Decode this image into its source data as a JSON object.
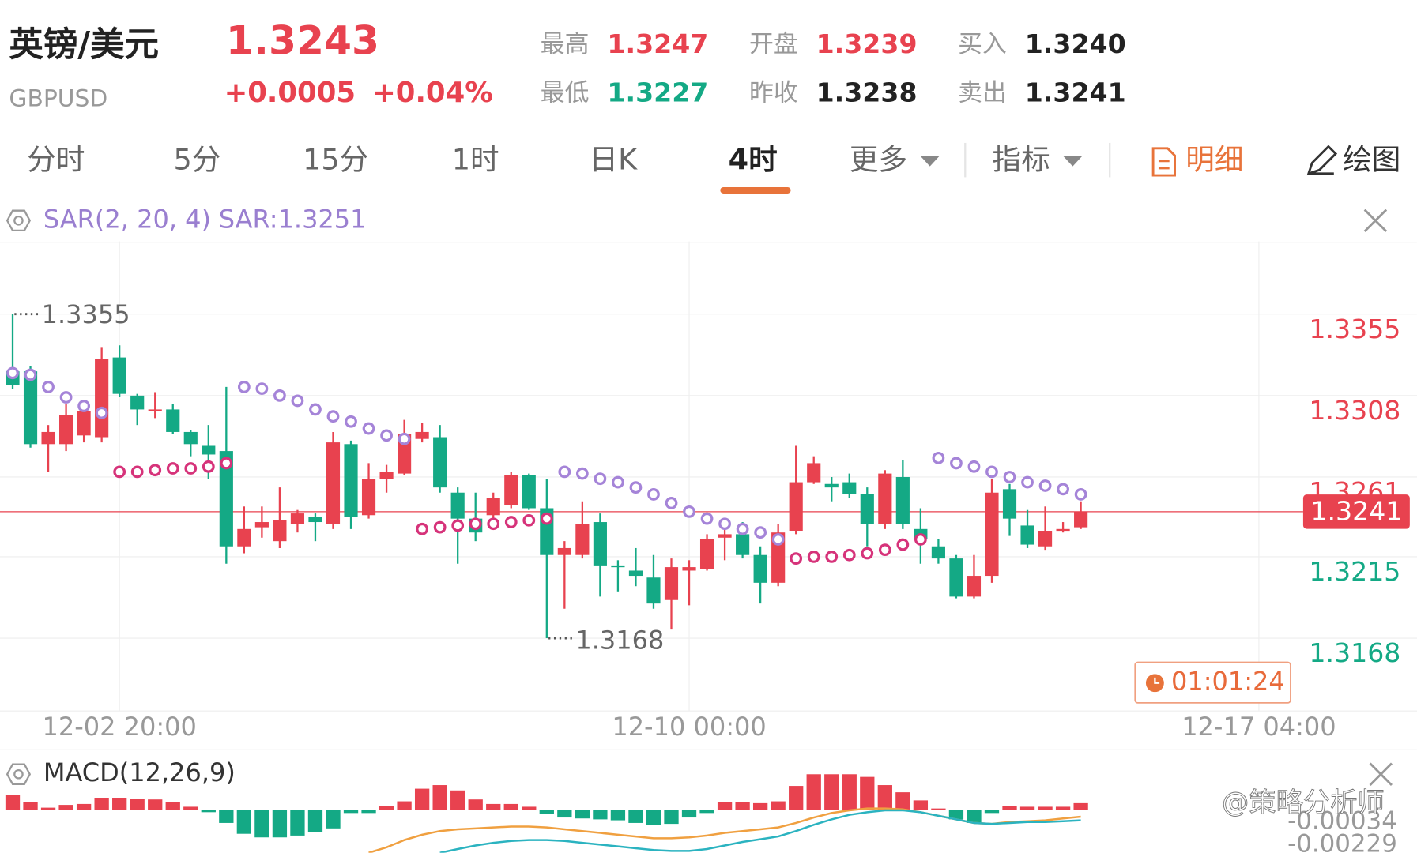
{
  "header": {
    "name": "英镑/美元",
    "code": "GBPUSD",
    "price": "1.3243",
    "change": "+0.0005",
    "change_pct": "+0.04%"
  },
  "stats": [
    {
      "label": "最高",
      "value": "1.3247",
      "color": "#e8424f"
    },
    {
      "label": "最低",
      "value": "1.3227",
      "color": "#14a985"
    },
    {
      "label": "开盘",
      "value": "1.3239",
      "color": "#e8424f"
    },
    {
      "label": "昨收",
      "value": "1.3238",
      "color": "#222222"
    },
    {
      "label": "买入",
      "value": "1.3240",
      "color": "#222222"
    },
    {
      "label": "卖出",
      "value": "1.3241",
      "color": "#222222"
    }
  ],
  "tabs": [
    "分时",
    "5分",
    "15分",
    "1时",
    "日K",
    "4时",
    "更多",
    "指标",
    "明细",
    "绘图"
  ],
  "active_tab": 5,
  "watermark": "@策略分析师",
  "chart_data": {
    "type": "candlestick",
    "indicator": "SAR(2, 20, 4)",
    "indicator_value": "SAR:1.3251",
    "up_color": "#e8424f",
    "down_color": "#14a985",
    "open": [
      1.3322,
      1.3322,
      1.328,
      1.328,
      1.3285,
      1.3284,
      1.333,
      1.3308,
      1.3299,
      1.33,
      1.3287,
      1.3279,
      1.3276,
      1.3221,
      1.3232,
      1.3224,
      1.3234,
      1.3238,
      1.3234,
      1.328,
      1.3239,
      1.326,
      1.3263,
      1.3283,
      1.3284,
      1.3252,
      1.3237,
      1.3239,
      1.3245,
      1.3262,
      1.3243,
      1.3216,
      1.3216,
      1.3235,
      1.321,
      1.3207,
      1.3203,
      1.319,
      1.3207,
      1.3208,
      1.3226,
      1.3228,
      1.3216,
      1.32,
      1.323,
      1.3258,
      1.3257,
      1.3258,
      1.3251,
      1.3234,
      1.3261,
      1.3231,
      1.3221,
      1.3214,
      1.3192,
      1.3204,
      1.3254,
      1.3233,
      1.3221,
      1.323,
      1.3232
    ],
    "high": [
      1.3355,
      1.3325,
      1.3291,
      1.3303,
      1.3304,
      1.3336,
      1.3337,
      1.3309,
      1.331,
      1.3303,
      1.3288,
      1.3291,
      1.3313,
      1.3244,
      1.3244,
      1.3255,
      1.3242,
      1.324,
      1.3287,
      1.3282,
      1.3269,
      1.3268,
      1.3294,
      1.3292,
      1.3291,
      1.3255,
      1.3252,
      1.3252,
      1.3264,
      1.3263,
      1.326,
      1.3224,
      1.3247,
      1.324,
      1.3213,
      1.322,
      1.3216,
      1.3214,
      1.3213,
      1.3228,
      1.3237,
      1.3235,
      1.3221,
      1.3234,
      1.3279,
      1.3273,
      1.3261,
      1.3263,
      1.3255,
      1.3265,
      1.3271,
      1.3243,
      1.3225,
      1.3216,
      1.3216,
      1.326,
      1.3257,
      1.3242,
      1.3244,
      1.3235,
      1.3247
    ],
    "low": [
      1.3312,
      1.3278,
      1.3264,
      1.3276,
      1.3281,
      1.3281,
      1.3307,
      1.3291,
      1.3295,
      1.3286,
      1.3273,
      1.326,
      1.3211,
      1.3217,
      1.3226,
      1.322,
      1.3229,
      1.3224,
      1.3231,
      1.3231,
      1.3237,
      1.3252,
      1.3262,
      1.3281,
      1.3252,
      1.3211,
      1.3224,
      1.3237,
      1.3243,
      1.3242,
      1.3168,
      1.3185,
      1.3214,
      1.3192,
      1.3195,
      1.3198,
      1.3185,
      1.3173,
      1.3187,
      1.3207,
      1.3213,
      1.3214,
      1.3188,
      1.3198,
      1.3228,
      1.3257,
      1.3247,
      1.3249,
      1.3221,
      1.3231,
      1.3231,
      1.3211,
      1.3211,
      1.3191,
      1.3191,
      1.32,
      1.3227,
      1.322,
      1.3219,
      1.3229,
      1.3231
    ],
    "close": [
      1.3314,
      1.328,
      1.3287,
      1.3297,
      1.3299,
      1.3329,
      1.3309,
      1.33,
      1.33,
      1.3287,
      1.328,
      1.3274,
      1.3221,
      1.3231,
      1.3235,
      1.3236,
      1.324,
      1.3235,
      1.3281,
      1.3238,
      1.326,
      1.3264,
      1.3286,
      1.3287,
      1.3255,
      1.3237,
      1.3229,
      1.3249,
      1.3262,
      1.3243,
      1.3216,
      1.322,
      1.3234,
      1.321,
      1.3209,
      1.3204,
      1.3188,
      1.3209,
      1.3209,
      1.3225,
      1.3228,
      1.3216,
      1.32,
      1.3229,
      1.3258,
      1.3269,
      1.3255,
      1.3251,
      1.3234,
      1.3263,
      1.3234,
      1.3225,
      1.3214,
      1.3192,
      1.3204,
      1.3252,
      1.3237,
      1.3222,
      1.323,
      1.3231,
      1.3241
    ],
    "sar": [
      {
        "color": "#a584d8",
        "values": [
          1.3321,
          1.332,
          1.3313,
          1.3307,
          1.3302,
          1.3298,
          null,
          null,
          null,
          null,
          null,
          null,
          null,
          1.3313,
          1.3312,
          1.3308,
          1.3305,
          1.33,
          1.3296,
          1.3293,
          1.3289,
          1.3285,
          1.3283,
          null,
          null,
          null,
          null,
          null,
          null,
          null,
          null,
          1.3264,
          1.3263,
          1.326,
          1.3258,
          1.3255,
          1.3251,
          1.3246,
          1.3241,
          1.3237,
          1.3234,
          1.3231,
          1.3229,
          1.3225,
          null,
          null,
          null,
          null,
          null,
          null,
          null,
          null,
          1.3272,
          1.3269,
          1.3267,
          1.3264,
          1.3261,
          1.3258,
          1.3256,
          1.3254,
          1.3251
        ]
      },
      {
        "color": "#d6337a",
        "values": [
          null,
          null,
          null,
          null,
          null,
          null,
          1.3264,
          1.3264,
          1.3265,
          1.3266,
          1.3266,
          1.3267,
          1.3269,
          null,
          null,
          null,
          null,
          null,
          null,
          null,
          null,
          null,
          null,
          1.3231,
          1.3232,
          1.3233,
          1.3234,
          1.3234,
          1.3235,
          1.3236,
          1.3237,
          null,
          null,
          null,
          null,
          null,
          null,
          null,
          null,
          null,
          null,
          null,
          null,
          null,
          1.3214,
          1.3215,
          1.3215,
          1.3216,
          1.3217,
          1.3219,
          1.3222,
          1.3225,
          null,
          null,
          null,
          null,
          null,
          null,
          null,
          null,
          null
        ]
      }
    ],
    "ylim": [
      1.3126,
      1.3397
    ],
    "yticks": [
      1.3355,
      1.3308,
      1.3261,
      1.3215,
      1.3168
    ],
    "current": 1.3241,
    "timer": "01:01:24",
    "x_labels": [
      {
        "index": 6,
        "label": "12-02 20:00"
      },
      {
        "index": 38,
        "label": "12-10 00:00"
      },
      {
        "index": 70,
        "label": "12-17 04:00"
      }
    ],
    "macd": {
      "title": "MACD(12,26,9)",
      "histogram": [
        0.00133,
        0.0007,
        0.00023,
        0.00047,
        0.00055,
        0.00109,
        0.00109,
        0.00101,
        0.00094,
        0.0007,
        0.00031,
        -0.00016,
        -0.00109,
        -0.00203,
        -0.00234,
        -0.00234,
        -0.00218,
        -0.00187,
        -0.00156,
        -0.00023,
        -0.00023,
        0.00039,
        0.00078,
        0.00187,
        0.00218,
        0.00172,
        0.00094,
        0.00055,
        0.00055,
        0.00031,
        -0.00031,
        -0.00062,
        -0.0007,
        -0.00078,
        -0.00086,
        -0.00109,
        -0.00125,
        -0.00117,
        -0.00062,
        -0.00023,
        0.0007,
        0.0007,
        0.00062,
        0.00078,
        0.00211,
        0.00312,
        0.00312,
        0.00312,
        0.00289,
        0.00218,
        0.00156,
        0.00086,
        0.00016,
        -0.00078,
        -0.00109,
        -0.00023,
        0.00039,
        0.00031,
        0.00031,
        0.00031,
        0.00062
      ],
      "series": [
        {
          "color": "#f0a040",
          "values": [
            null,
            null,
            null,
            null,
            null,
            null,
            null,
            null,
            null,
            null,
            null,
            null,
            null,
            null,
            null,
            null,
            null,
            null,
            null,
            null,
            -0.00367,
            -0.0032,
            -0.00257,
            -0.00211,
            -0.00179,
            -0.00164,
            -0.00156,
            -0.00148,
            -0.0014,
            -0.0014,
            -0.00148,
            -0.00164,
            -0.00179,
            -0.00195,
            -0.00211,
            -0.00226,
            -0.00242,
            -0.00242,
            -0.00234,
            -0.00218,
            -0.00195,
            -0.00179,
            -0.00164,
            -0.00148,
            -0.00109,
            -0.00062,
            -0.00023,
            0,
            0.00016,
            0.00016,
            8e-05,
            -0.00016,
            -0.00047,
            -0.00078,
            -0.00109,
            -0.00117,
            -0.00101,
            -0.00094,
            -0.00086,
            -0.0007,
            -0.00055
          ]
        },
        {
          "color": "#2bb3c0",
          "values": [
            null,
            null,
            null,
            null,
            null,
            null,
            null,
            null,
            null,
            null,
            null,
            null,
            null,
            null,
            null,
            null,
            null,
            null,
            null,
            null,
            null,
            null,
            null,
            null,
            -0.00367,
            -0.00335,
            -0.00304,
            -0.00281,
            -0.00265,
            -0.00257,
            -0.00257,
            -0.00265,
            -0.00281,
            -0.00296,
            -0.00312,
            -0.00328,
            -0.00343,
            -0.00351,
            -0.00351,
            -0.00335,
            -0.00304,
            -0.00273,
            -0.0025,
            -0.00226,
            -0.00179,
            -0.00125,
            -0.00078,
            -0.00039,
            -0.00016,
            0,
            0,
            -0.00016,
            -0.00047,
            -0.00078,
            -0.00109,
            -0.00117,
            -0.00109,
            -0.00101,
            -0.00101,
            -0.00094,
            -0.00086
          ]
        }
      ],
      "ylim": [
        -0.00367,
        0.00523
      ],
      "yticks": [
        -0.00034,
        -0.00229
      ]
    }
  }
}
